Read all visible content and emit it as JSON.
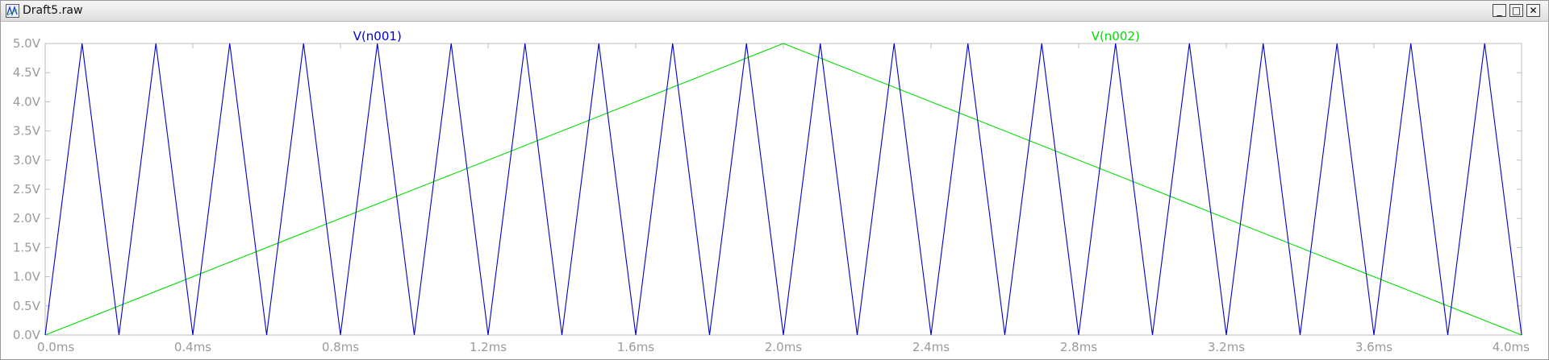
{
  "window": {
    "title": "Draft5.raw",
    "icon": "waveform-app-icon",
    "controls": {
      "minimize": "_",
      "maximize": "□",
      "close": "✕"
    }
  },
  "colors": {
    "n001": "#0000cc",
    "n002": "#00dd00",
    "grid": "#bdbdbd",
    "tick_text": "#9a9a9a"
  },
  "chart_data": {
    "type": "line",
    "xlabel": "",
    "ylabel": "",
    "xlim": [
      0,
      4.0
    ],
    "ylim": [
      0,
      5.0
    ],
    "x_unit": "ms",
    "y_unit": "V",
    "x_ticks": [
      "0.0ms",
      "0.4ms",
      "0.8ms",
      "1.2ms",
      "1.6ms",
      "2.0ms",
      "2.4ms",
      "2.8ms",
      "3.2ms",
      "3.6ms",
      "4.0ms"
    ],
    "y_ticks": [
      "0.0V",
      "0.5V",
      "1.0V",
      "1.5V",
      "2.0V",
      "2.5V",
      "3.0V",
      "3.5V",
      "4.0V",
      "4.5V",
      "5.0V"
    ],
    "grid": false,
    "series": [
      {
        "name": "V(n001)",
        "x": [
          0.0,
          0.1,
          0.2,
          0.3,
          0.4,
          0.5,
          0.6,
          0.7,
          0.8,
          0.9,
          1.0,
          1.1,
          1.2,
          1.3,
          1.4,
          1.5,
          1.6,
          1.7,
          1.8,
          1.9,
          2.0,
          2.1,
          2.2,
          2.3,
          2.4,
          2.5,
          2.6,
          2.7,
          2.8,
          2.9,
          3.0,
          3.1,
          3.2,
          3.3,
          3.4,
          3.5,
          3.6,
          3.7,
          3.8,
          3.9,
          4.0
        ],
        "y": [
          0,
          5,
          0,
          5,
          0,
          5,
          0,
          5,
          0,
          5,
          0,
          5,
          0,
          5,
          0,
          5,
          0,
          5,
          0,
          5,
          0,
          5,
          0,
          5,
          0,
          5,
          0,
          5,
          0,
          5,
          0,
          5,
          0,
          5,
          0,
          5,
          0,
          5,
          0,
          5,
          0
        ]
      },
      {
        "name": "V(n002)",
        "x": [
          0.0,
          2.0,
          4.0
        ],
        "y": [
          0,
          5,
          0
        ]
      }
    ]
  }
}
